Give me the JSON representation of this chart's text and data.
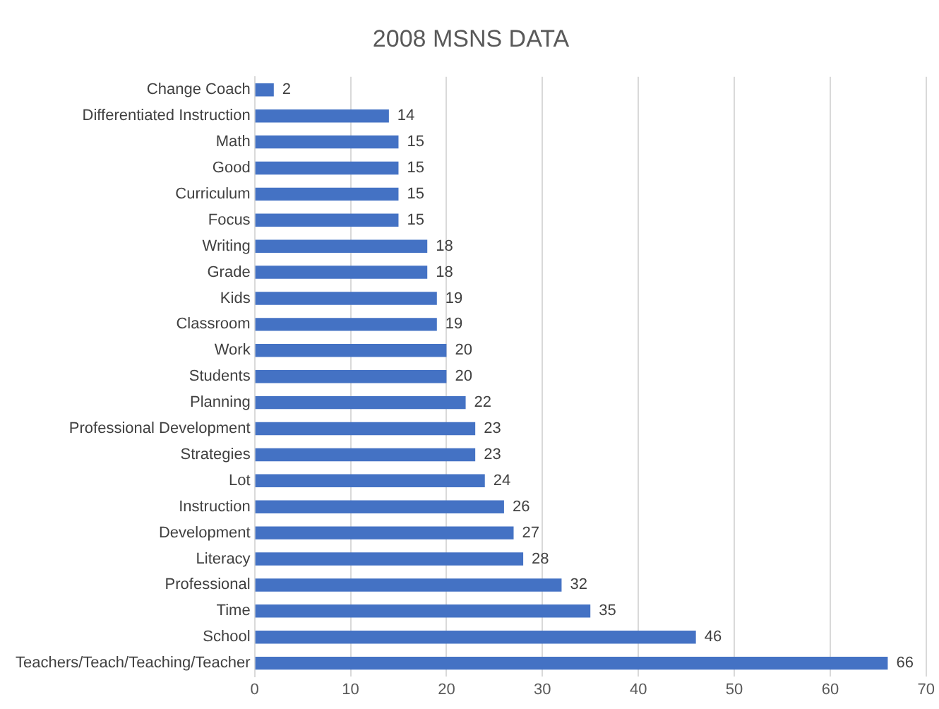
{
  "chart_data": {
    "type": "bar",
    "orientation": "horizontal",
    "title": "2008 MSNS DATA",
    "categories": [
      "Change Coach",
      "Differentiated Instruction",
      "Math",
      "Good",
      "Curriculum",
      "Focus",
      "Writing",
      "Grade",
      "Kids",
      "Classroom",
      "Work",
      "Students",
      "Planning",
      "Professional Development",
      "Strategies",
      "Lot",
      "Instruction",
      "Development",
      "Literacy",
      "Professional",
      "Time",
      "School",
      "Teachers/Teach/Teaching/Teacher"
    ],
    "values": [
      2,
      14,
      15,
      15,
      15,
      15,
      18,
      18,
      19,
      19,
      20,
      20,
      22,
      23,
      23,
      24,
      26,
      27,
      28,
      32,
      35,
      46,
      66
    ],
    "color": "#4472c4",
    "xlim": [
      0,
      70
    ],
    "xticks": [
      0,
      10,
      20,
      30,
      40,
      50,
      60,
      70
    ],
    "grid": "x",
    "data_labels": true
  }
}
